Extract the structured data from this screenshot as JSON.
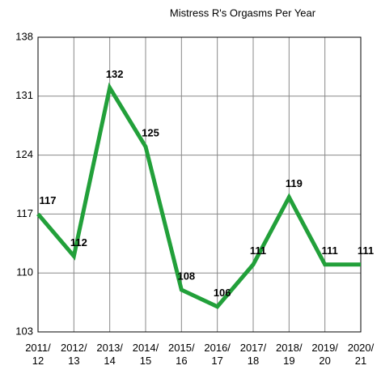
{
  "chart_data": {
    "type": "line",
    "title": "Mistress R's Orgasms Per Year",
    "categories": [
      "2011/ 12",
      "2012/ 13",
      "2013/ 14",
      "2014/ 15",
      "2015/ 16",
      "2016/ 17",
      "2017/ 18",
      "2018/ 19",
      "2019/ 20",
      "2020/ 21"
    ],
    "series": [
      {
        "name": "Orgasms",
        "color": "#22a03a",
        "values": [
          117,
          112,
          132,
          125,
          108,
          106,
          111,
          119,
          111,
          111
        ]
      }
    ],
    "ylim": [
      103,
      138
    ],
    "yticks": [
      103,
      110,
      117,
      124,
      131,
      138
    ],
    "grid": true
  }
}
